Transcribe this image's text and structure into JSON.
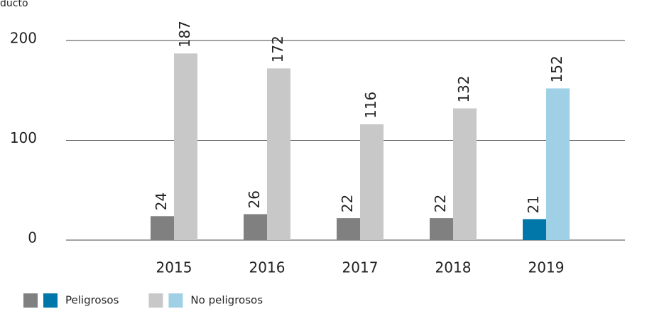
{
  "chart_data": {
    "type": "bar",
    "y_label": "ducto",
    "categories": [
      "2015",
      "2016",
      "2017",
      "2018",
      "2019"
    ],
    "series": [
      {
        "name": "Peligrosos",
        "colors": [
          "#808080",
          "#808080",
          "#808080",
          "#808080",
          "#0077a8"
        ],
        "values": [
          24,
          26,
          22,
          22,
          21
        ]
      },
      {
        "name": "No peligrosos",
        "colors": [
          "#c8c8c8",
          "#c8c8c8",
          "#c8c8c8",
          "#c8c8c8",
          "#9fd0e6"
        ],
        "values": [
          187,
          172,
          116,
          132,
          152
        ]
      }
    ],
    "ylim": [
      0,
      200
    ],
    "yticks": [
      0,
      100,
      200
    ],
    "grid": true,
    "legend": "bottom-left"
  }
}
